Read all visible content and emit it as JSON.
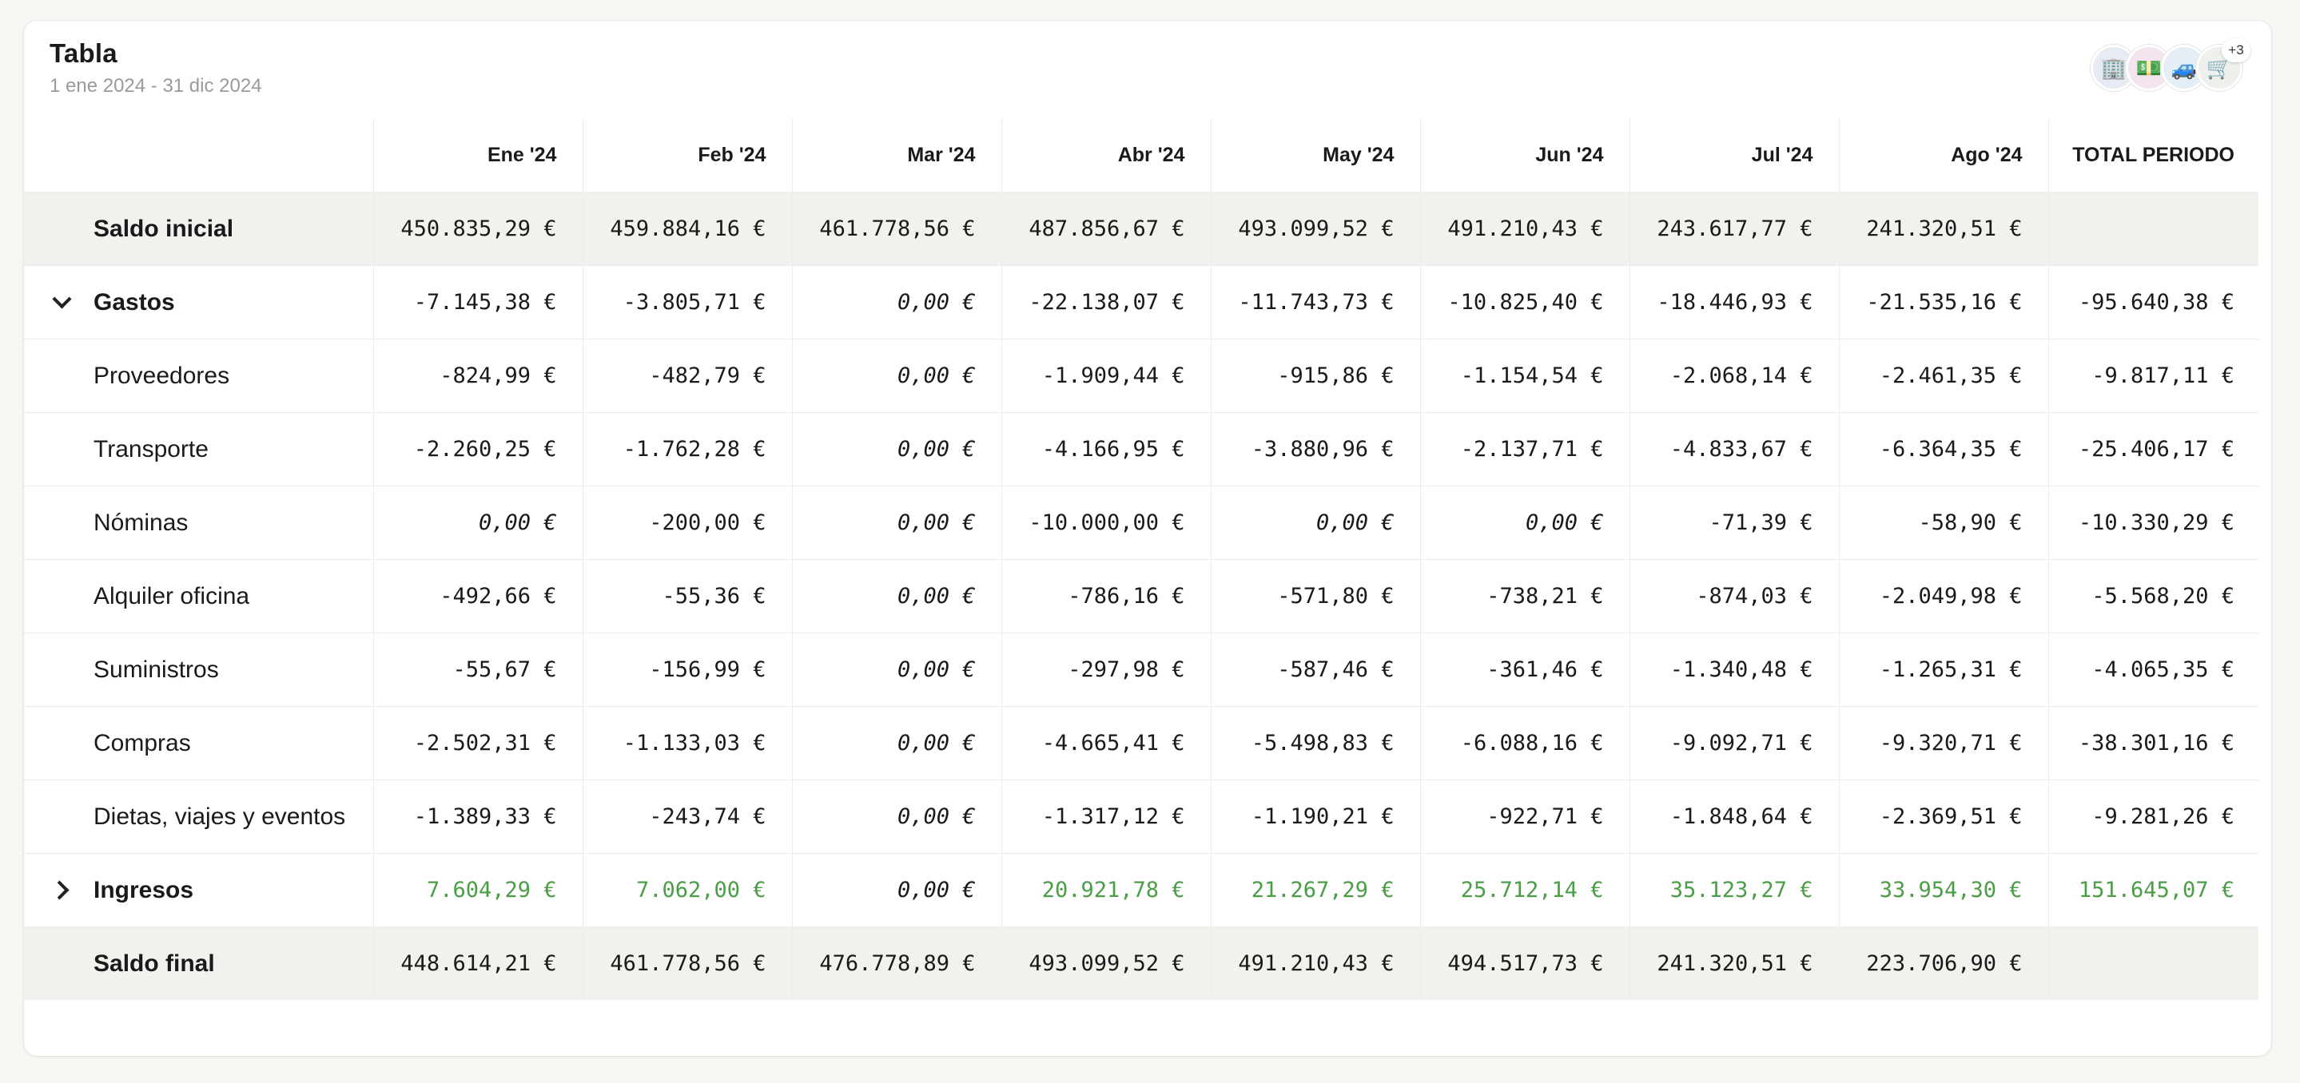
{
  "header": {
    "title": "Tabla",
    "subtitle": "1 ene 2024 - 31 dic 2024"
  },
  "avatars": {
    "icons": [
      "building-icon",
      "money-icon",
      "car-icon",
      "cart-icon"
    ],
    "emoji": [
      "🏢",
      "💵",
      "🚙",
      "🛒"
    ],
    "more": "+3"
  },
  "table": {
    "columns": [
      "",
      "Ene '24",
      "Feb '24",
      "Mar '24",
      "Abr '24",
      "May '24",
      "Jun '24",
      "Jul '24",
      "Ago '24",
      "TOTAL PERIODO"
    ],
    "rows": [
      {
        "label": "Saldo inicial",
        "type": "summary",
        "values": [
          "450.835,29 €",
          "459.884,16 €",
          "461.778,56 €",
          "487.856,67 €",
          "493.099,52 €",
          "491.210,43 €",
          "243.617,77 €",
          "241.320,51 €",
          ""
        ]
      },
      {
        "label": "Gastos",
        "type": "group",
        "expanded": true,
        "values": [
          "-7.145,38 €",
          "-3.805,71 €",
          "0,00 €",
          "-22.138,07 €",
          "-11.743,73 €",
          "-10.825,40 €",
          "-18.446,93 €",
          "-21.535,16 €",
          "-95.640,38 €"
        ]
      },
      {
        "label": "Proveedores",
        "type": "item",
        "values": [
          "-824,99 €",
          "-482,79 €",
          "0,00 €",
          "-1.909,44 €",
          "-915,86 €",
          "-1.154,54 €",
          "-2.068,14 €",
          "-2.461,35 €",
          "-9.817,11 €"
        ]
      },
      {
        "label": "Transporte",
        "type": "item",
        "values": [
          "-2.260,25 €",
          "-1.762,28 €",
          "0,00 €",
          "-4.166,95 €",
          "-3.880,96 €",
          "-2.137,71 €",
          "-4.833,67 €",
          "-6.364,35 €",
          "-25.406,17 €"
        ]
      },
      {
        "label": "Nóminas",
        "type": "item",
        "values": [
          "0,00 €",
          "-200,00 €",
          "0,00 €",
          "-10.000,00 €",
          "0,00 €",
          "0,00 €",
          "-71,39 €",
          "-58,90 €",
          "-10.330,29 €"
        ]
      },
      {
        "label": "Alquiler oficina",
        "type": "item",
        "values": [
          "-492,66 €",
          "-55,36 €",
          "0,00 €",
          "-786,16 €",
          "-571,80 €",
          "-738,21 €",
          "-874,03 €",
          "-2.049,98 €",
          "-5.568,20 €"
        ]
      },
      {
        "label": "Suministros",
        "type": "item",
        "values": [
          "-55,67 €",
          "-156,99 €",
          "0,00 €",
          "-297,98 €",
          "-587,46 €",
          "-361,46 €",
          "-1.340,48 €",
          "-1.265,31 €",
          "-4.065,35 €"
        ]
      },
      {
        "label": "Compras",
        "type": "item",
        "values": [
          "-2.502,31 €",
          "-1.133,03 €",
          "0,00 €",
          "-4.665,41 €",
          "-5.498,83 €",
          "-6.088,16 €",
          "-9.092,71 €",
          "-9.320,71 €",
          "-38.301,16 €"
        ]
      },
      {
        "label": "Dietas, viajes y eventos",
        "type": "item",
        "values": [
          "-1.389,33 €",
          "-243,74 €",
          "0,00 €",
          "-1.317,12 €",
          "-1.190,21 €",
          "-922,71 €",
          "-1.848,64 €",
          "-2.369,51 €",
          "-9.281,26 €"
        ]
      },
      {
        "label": "Ingresos",
        "type": "group",
        "expanded": false,
        "positive": true,
        "values": [
          "7.604,29 €",
          "7.062,00 €",
          "0,00 €",
          "20.921,78 €",
          "21.267,29 €",
          "25.712,14 €",
          "35.123,27 €",
          "33.954,30 €",
          "151.645,07 €"
        ]
      },
      {
        "label": "Saldo final",
        "type": "summary",
        "values": [
          "448.614,21 €",
          "461.778,56 €",
          "476.778,89 €",
          "493.099,52 €",
          "491.210,43 €",
          "494.517,73 €",
          "241.320,51 €",
          "223.706,90 €",
          ""
        ]
      }
    ]
  },
  "colors": {
    "positive": "#4a9e45",
    "summary_bg": "#f2f1ee",
    "page_bg": "#f6f6f3"
  }
}
